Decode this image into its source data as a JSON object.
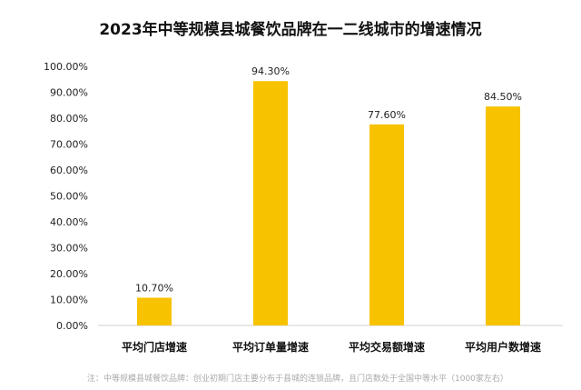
{
  "chart_data": {
    "type": "bar",
    "title": "2023年中等规模县城餐饮品牌在一二线城市的增速情况",
    "categories": [
      "平均门店增速",
      "平均订单量增速",
      "平均交易额增速",
      "平均用户数增速"
    ],
    "values": [
      10.7,
      94.3,
      77.6,
      84.5
    ],
    "data_labels": [
      "10.70%",
      "94.30%",
      "77.60%",
      "84.50%"
    ],
    "ylim": [
      0,
      100
    ],
    "yticks": [
      "0.00%",
      "10.00%",
      "20.00%",
      "30.00%",
      "40.00%",
      "50.00%",
      "60.00%",
      "70.00%",
      "80.00%",
      "90.00%",
      "100.00%"
    ],
    "grid": false,
    "bar_color": "#F7C200",
    "note": "注：中等规模县城餐饮品牌：创业初期门店主要分布于县城的连锁品牌，且门店数处于全国中等水平（1000家左右）"
  }
}
